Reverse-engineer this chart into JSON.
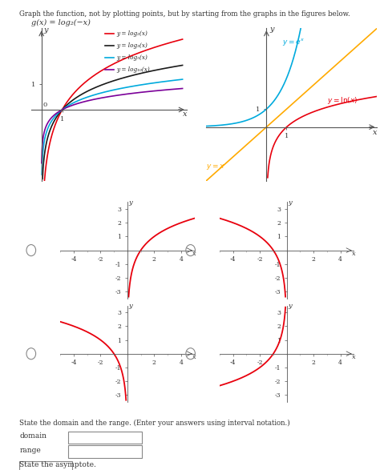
{
  "title_text": "Graph the function, not by plotting points, but by starting from the graphs in the figures below.",
  "function_label": "g(x) = log₂(−x)",
  "bg_color": "#ffffff",
  "top_left_curves": [
    {
      "label": "y = log₂(x)",
      "base": 2,
      "color": "#e8000d"
    },
    {
      "label": "y = log₃(x)",
      "base": 3,
      "color": "#1a1a1a"
    },
    {
      "label": "y = log₅(x)",
      "base": 5,
      "color": "#00aadd"
    },
    {
      "label": "y = log₁₀(x)",
      "base": 10,
      "color": "#7b0099"
    }
  ],
  "curve_red": "#e8000d",
  "curve_cyan": "#00aadd",
  "curve_orange": "#ffaa00",
  "small_curve_color": "#e8000d",
  "radio_color": "#888888",
  "axis_color": "#555555",
  "text_color": "#333333",
  "form_color": "#888888",
  "tl_xlim": [
    -0.5,
    7.0
  ],
  "tl_ylim": [
    -2.8,
    3.2
  ],
  "tr_xlim": [
    -3.0,
    5.5
  ],
  "tr_ylim": [
    -3.0,
    5.5
  ],
  "sm_xlim": [
    -5.0,
    5.0
  ],
  "sm_ylim": [
    -3.5,
    3.5
  ]
}
